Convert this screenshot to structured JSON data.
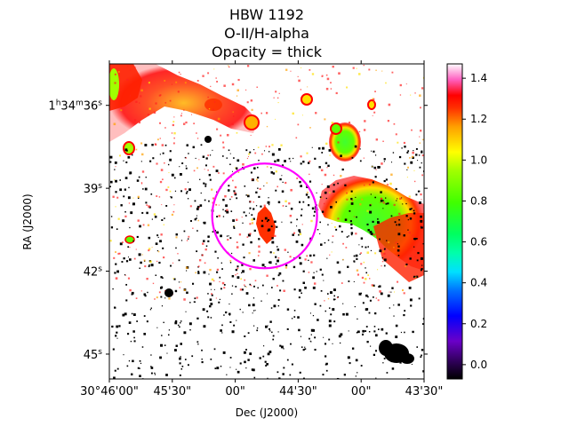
{
  "chart_data": {
    "type": "heatmap",
    "title_lines": [
      "HBW 1192",
      "O-II/H-alpha",
      "Opacity = thick"
    ],
    "xlabel": "Dec (J2000)",
    "ylabel": "RA (J2000)",
    "x_ticks": [
      {
        "label": "30°46'00\"",
        "value": 0
      },
      {
        "label": "45'30\"",
        "value": 30
      },
      {
        "label": "00\"",
        "value": 60
      },
      {
        "label": "44'30\"",
        "value": 90
      },
      {
        "label": "00\"",
        "value": 120
      },
      {
        "label": "43'30\"",
        "value": 150
      }
    ],
    "x_range_arcsec": [
      0,
      150
    ],
    "y_ticks": [
      {
        "label": "1h34m36s",
        "html_parts": [
          "1",
          "h",
          "34",
          "m",
          "36",
          "s"
        ],
        "value": 36
      },
      {
        "label": "39s",
        "html_parts": [
          "39",
          "s"
        ],
        "value": 39
      },
      {
        "label": "42s",
        "html_parts": [
          "42",
          "s"
        ],
        "value": 42
      },
      {
        "label": "45s",
        "html_parts": [
          "45",
          "s"
        ],
        "value": 45
      }
    ],
    "y_range_seconds": [
      34.5,
      45.9
    ],
    "colorbar": {
      "colormap": "gist_ncar",
      "range": [
        -0.07,
        1.47
      ],
      "ticks": [
        0.0,
        0.2,
        0.4,
        0.6,
        0.8,
        1.0,
        1.2,
        1.4
      ],
      "tick_labels": [
        "0.0",
        "0.2",
        "0.4",
        "0.6",
        "0.8",
        "1.0",
        "1.2",
        "1.4"
      ]
    },
    "aperture_circle": {
      "color": "#ff00ff",
      "center_dec_arcsec": 74,
      "center_ra_seconds": 40.0,
      "radius_arcsec": 25
    }
  }
}
